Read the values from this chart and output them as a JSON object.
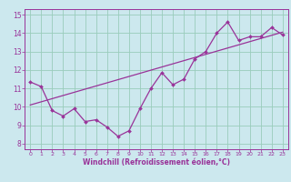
{
  "xlabel": "Windchill (Refroidissement éolien,°C)",
  "bg_color": "#cce8ee",
  "line_color": "#993399",
  "grid_color": "#99ccbb",
  "xlim": [
    -0.5,
    23.5
  ],
  "ylim": [
    7.7,
    15.3
  ],
  "xticks": [
    0,
    1,
    2,
    3,
    4,
    5,
    6,
    7,
    8,
    9,
    10,
    11,
    12,
    13,
    14,
    15,
    16,
    17,
    18,
    19,
    20,
    21,
    22,
    23
  ],
  "yticks": [
    8,
    9,
    10,
    11,
    12,
    13,
    14,
    15
  ],
  "data_x": [
    0,
    1,
    2,
    3,
    4,
    5,
    6,
    7,
    8,
    9,
    10,
    11,
    12,
    13,
    14,
    15,
    16,
    17,
    18,
    19,
    20,
    21,
    22,
    23
  ],
  "data_y": [
    11.35,
    11.1,
    9.8,
    9.5,
    9.9,
    9.2,
    9.3,
    8.9,
    8.4,
    8.7,
    9.9,
    11.0,
    11.85,
    11.2,
    11.5,
    12.6,
    13.0,
    14.0,
    14.6,
    13.6,
    13.8,
    13.8,
    14.3,
    13.9
  ],
  "trend_x": [
    0,
    23
  ],
  "trend_y": [
    10.1,
    14.05
  ]
}
